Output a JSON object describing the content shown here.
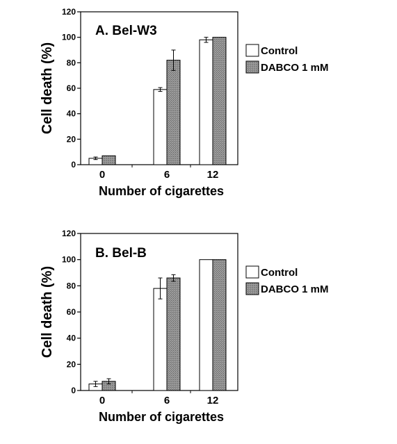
{
  "colors": {
    "control_fill": "#ffffff",
    "dabco_fill": "#8a8a8a",
    "stroke": "#000000"
  },
  "chart_data": [
    {
      "type": "bar",
      "title": "A. Bel-W3",
      "xlabel": "Number of cigarettes",
      "ylabel": "Cell death (%)",
      "categories": [
        "0",
        "6",
        "12"
      ],
      "ylim": [
        0,
        120
      ],
      "yticks": [
        0,
        20,
        40,
        60,
        80,
        100,
        120
      ],
      "legend_position": "right",
      "series": [
        {
          "name": "Control",
          "values": [
            5,
            59,
            98
          ],
          "errors": [
            1,
            1.5,
            2
          ],
          "fill": "#ffffff"
        },
        {
          "name": "DABCO 1 mM",
          "values": [
            7,
            82,
            100
          ],
          "errors": [
            0,
            8,
            0
          ],
          "fill": "#8a8a8a"
        }
      ]
    },
    {
      "type": "bar",
      "title": "B. Bel-B",
      "xlabel": "Number of cigarettes",
      "ylabel": "Cell death (%)",
      "categories": [
        "0",
        "6",
        "12"
      ],
      "ylim": [
        0,
        120
      ],
      "yticks": [
        0,
        20,
        40,
        60,
        80,
        100,
        120
      ],
      "legend_position": "right",
      "series": [
        {
          "name": "Control",
          "values": [
            5,
            78,
            100
          ],
          "errors": [
            2,
            8,
            0
          ],
          "fill": "#ffffff"
        },
        {
          "name": "DABCO 1 mM",
          "values": [
            7,
            86,
            100
          ],
          "errors": [
            2,
            2.5,
            0
          ],
          "fill": "#8a8a8a"
        }
      ]
    }
  ]
}
